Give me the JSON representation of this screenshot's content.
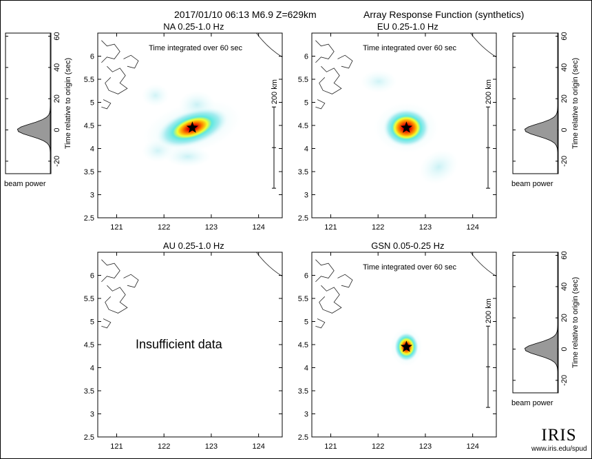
{
  "header": {
    "event": "2017/01/10 06:13  M6.9  Z=629km",
    "product": "Array Response Function (synthetics)"
  },
  "chart_data": [
    {
      "type": "heatmap",
      "title": "NA  0.25-1.0 Hz",
      "subtitle": "Time integrated over 60 sec",
      "xlim": [
        120.6,
        124.5
      ],
      "ylim": [
        2.5,
        6.5
      ],
      "x_ticks": [
        "121",
        "122",
        "123",
        "124"
      ],
      "y_ticks": [
        "2.5",
        "3",
        "3.5",
        "4",
        "4.5",
        "5",
        "5.5",
        "6"
      ],
      "epicenter": [
        122.6,
        4.45
      ],
      "scale_label": "200 km",
      "beam_trace": {
        "ylabel": "Time relative to origin (sec)",
        "xlabel": "beam power",
        "ticks": [
          "60",
          "40",
          "20",
          "0",
          "-20"
        ],
        "ylim": [
          -28,
          62
        ]
      }
    },
    {
      "type": "heatmap",
      "title": "EU  0.25-1.0 Hz",
      "subtitle": "Time integrated over 60 sec",
      "xlim": [
        120.6,
        124.5
      ],
      "ylim": [
        2.5,
        6.5
      ],
      "x_ticks": [
        "121",
        "122",
        "123",
        "124"
      ],
      "y_ticks": [
        "2.5",
        "3",
        "3.5",
        "4",
        "4.5",
        "5",
        "5.5",
        "6"
      ],
      "epicenter": [
        122.6,
        4.45
      ],
      "scale_label": "200 km",
      "beam_trace": {
        "ylabel": "Time relative to origin (sec)",
        "xlabel": "beam power",
        "ticks": [
          "60",
          "40",
          "20",
          "0",
          "-20"
        ],
        "ylim": [
          -28,
          62
        ]
      }
    },
    {
      "type": "heatmap",
      "title": "AU  0.25-1.0 Hz",
      "note": "Insufficient data",
      "xlim": [
        120.6,
        124.5
      ],
      "ylim": [
        2.5,
        6.5
      ],
      "x_ticks": [
        "121",
        "122",
        "123",
        "124"
      ],
      "y_ticks": [
        "2.5",
        "3",
        "3.5",
        "4",
        "4.5",
        "5",
        "5.5",
        "6"
      ]
    },
    {
      "type": "heatmap",
      "title": "GSN  0.05-0.25 Hz",
      "subtitle": "Time integrated over 60 sec",
      "xlim": [
        120.6,
        124.5
      ],
      "ylim": [
        2.5,
        6.5
      ],
      "x_ticks": [
        "121",
        "122",
        "123",
        "124"
      ],
      "y_ticks": [
        "2.5",
        "3",
        "3.5",
        "4",
        "4.5",
        "5",
        "5.5",
        "6"
      ],
      "epicenter": [
        122.6,
        4.45
      ],
      "scale_label": "200 km",
      "beam_trace": {
        "ylabel": "Time relative to origin (sec)",
        "xlabel": "beam power",
        "ticks": [
          "60",
          "40",
          "20",
          "0",
          "-20"
        ],
        "ylim": [
          -28,
          62
        ]
      }
    }
  ],
  "logo": {
    "word": "IRIS",
    "url": "www.iris.edu/spud"
  }
}
